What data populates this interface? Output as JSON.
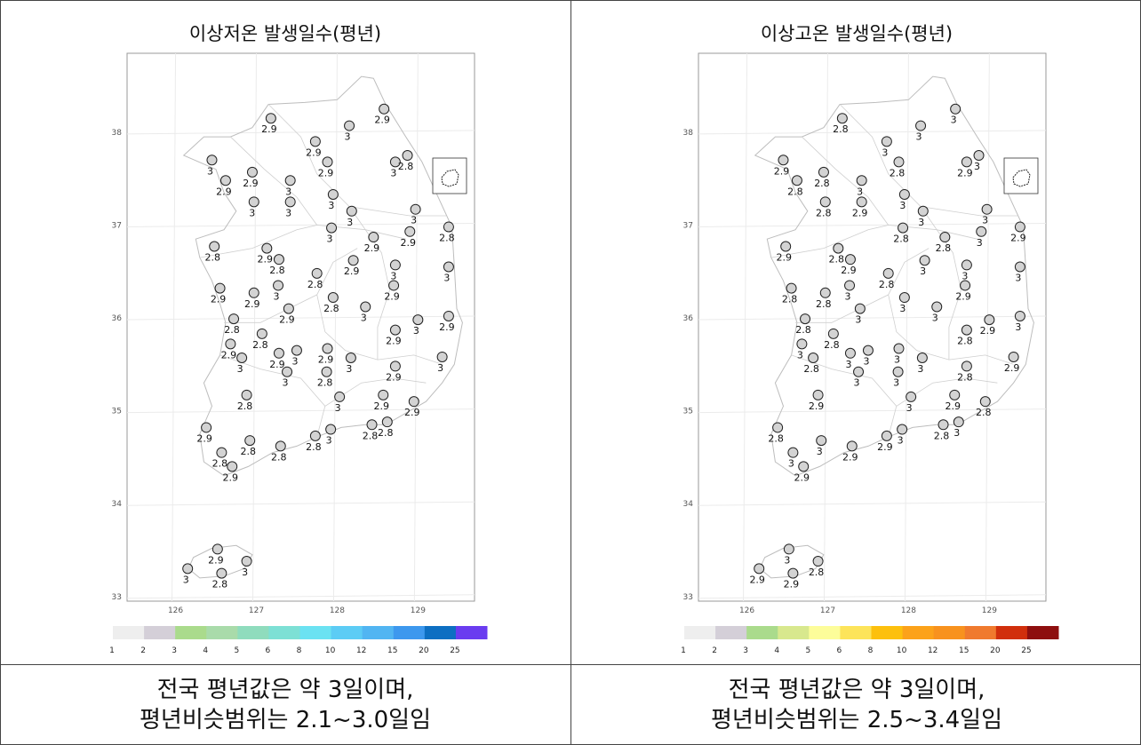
{
  "panels": [
    {
      "title": "이상저온 발생일수(평년)",
      "caption_line1": "전국 평년값은 약 3일이며,",
      "caption_line2": "평년비슷범위는 2.1~3.0일임",
      "legend": {
        "labels": [
          "1",
          "2",
          "3",
          "4",
          "5",
          "6",
          "8",
          "10",
          "12",
          "15",
          "20",
          "25"
        ],
        "colors": [
          "#eeeeee",
          "#d4cfd8",
          "#aadb8c",
          "#a9dbaa",
          "#8fdcbd",
          "#7de0d5",
          "#6be2f2",
          "#5cccf5",
          "#51b5f2",
          "#3d98ee",
          "#0d6fc2",
          "#6a3cf0"
        ]
      },
      "stations": [
        {
          "lon": 127.18,
          "lat": 38.15,
          "v": "2.9"
        },
        {
          "lon": 128.15,
          "lat": 38.07,
          "v": "3"
        },
        {
          "lon": 128.58,
          "lat": 38.25,
          "v": "2.9"
        },
        {
          "lon": 127.73,
          "lat": 37.9,
          "v": "2.9"
        },
        {
          "lon": 127.88,
          "lat": 37.68,
          "v": "2.9"
        },
        {
          "lon": 128.72,
          "lat": 37.68,
          "v": "3"
        },
        {
          "lon": 128.87,
          "lat": 37.75,
          "v": "2.8"
        },
        {
          "lon": 126.45,
          "lat": 37.7,
          "v": "3"
        },
        {
          "lon": 126.62,
          "lat": 37.48,
          "v": "2.9"
        },
        {
          "lon": 126.95,
          "lat": 37.57,
          "v": "2.9"
        },
        {
          "lon": 126.97,
          "lat": 37.25,
          "v": "3"
        },
        {
          "lon": 127.42,
          "lat": 37.48,
          "v": "3"
        },
        {
          "lon": 127.42,
          "lat": 37.25,
          "v": "3"
        },
        {
          "lon": 127.95,
          "lat": 37.33,
          "v": "3"
        },
        {
          "lon": 128.18,
          "lat": 37.15,
          "v": "3"
        },
        {
          "lon": 128.97,
          "lat": 37.17,
          "v": "3"
        },
        {
          "lon": 127.93,
          "lat": 36.97,
          "v": "3"
        },
        {
          "lon": 128.45,
          "lat": 36.87,
          "v": "2.9"
        },
        {
          "lon": 128.9,
          "lat": 36.93,
          "v": "2.9"
        },
        {
          "lon": 129.38,
          "lat": 36.98,
          "v": "2.8"
        },
        {
          "lon": 126.48,
          "lat": 36.77,
          "v": "2.8"
        },
        {
          "lon": 127.13,
          "lat": 36.75,
          "v": "2.9"
        },
        {
          "lon": 127.28,
          "lat": 36.63,
          "v": "2.8"
        },
        {
          "lon": 127.75,
          "lat": 36.48,
          "v": "2.8"
        },
        {
          "lon": 128.2,
          "lat": 36.62,
          "v": "2.9"
        },
        {
          "lon": 128.72,
          "lat": 36.57,
          "v": "3"
        },
        {
          "lon": 129.38,
          "lat": 36.55,
          "v": "3"
        },
        {
          "lon": 127.27,
          "lat": 36.35,
          "v": "3"
        },
        {
          "lon": 126.55,
          "lat": 36.32,
          "v": "2.9"
        },
        {
          "lon": 126.97,
          "lat": 36.27,
          "v": "2.9"
        },
        {
          "lon": 127.4,
          "lat": 36.1,
          "v": "2.9"
        },
        {
          "lon": 127.95,
          "lat": 36.22,
          "v": "2.8"
        },
        {
          "lon": 128.35,
          "lat": 36.12,
          "v": "3"
        },
        {
          "lon": 128.7,
          "lat": 36.35,
          "v": "2.9"
        },
        {
          "lon": 129.0,
          "lat": 35.98,
          "v": "3"
        },
        {
          "lon": 129.38,
          "lat": 36.02,
          "v": "2.9"
        },
        {
          "lon": 126.72,
          "lat": 35.99,
          "v": "2.8"
        },
        {
          "lon": 127.07,
          "lat": 35.83,
          "v": "2.8"
        },
        {
          "lon": 126.68,
          "lat": 35.72,
          "v": "2.9"
        },
        {
          "lon": 126.82,
          "lat": 35.57,
          "v": "3"
        },
        {
          "lon": 127.28,
          "lat": 35.62,
          "v": "2.9"
        },
        {
          "lon": 127.5,
          "lat": 35.65,
          "v": "3"
        },
        {
          "lon": 127.38,
          "lat": 35.42,
          "v": "3"
        },
        {
          "lon": 127.88,
          "lat": 35.67,
          "v": "2.9"
        },
        {
          "lon": 127.87,
          "lat": 35.42,
          "v": "2.8"
        },
        {
          "lon": 128.17,
          "lat": 35.57,
          "v": "3"
        },
        {
          "lon": 128.72,
          "lat": 35.87,
          "v": "2.9"
        },
        {
          "lon": 128.72,
          "lat": 35.48,
          "v": "2.9"
        },
        {
          "lon": 129.3,
          "lat": 35.58,
          "v": "3"
        },
        {
          "lon": 126.88,
          "lat": 35.17,
          "v": "2.8"
        },
        {
          "lon": 128.03,
          "lat": 35.15,
          "v": "3"
        },
        {
          "lon": 128.57,
          "lat": 35.17,
          "v": "2.9"
        },
        {
          "lon": 128.95,
          "lat": 35.1,
          "v": "2.9"
        },
        {
          "lon": 126.38,
          "lat": 34.82,
          "v": "2.9"
        },
        {
          "lon": 126.57,
          "lat": 34.55,
          "v": "2.8"
        },
        {
          "lon": 126.92,
          "lat": 34.68,
          "v": "2.8"
        },
        {
          "lon": 126.7,
          "lat": 34.4,
          "v": "2.9"
        },
        {
          "lon": 127.3,
          "lat": 34.62,
          "v": "2.8"
        },
        {
          "lon": 127.73,
          "lat": 34.73,
          "v": "2.8"
        },
        {
          "lon": 127.92,
          "lat": 34.8,
          "v": "3"
        },
        {
          "lon": 128.43,
          "lat": 34.85,
          "v": "2.8"
        },
        {
          "lon": 128.62,
          "lat": 34.88,
          "v": "2.8"
        },
        {
          "lon": 126.52,
          "lat": 33.51,
          "v": "2.9"
        },
        {
          "lon": 126.15,
          "lat": 33.3,
          "v": "3"
        },
        {
          "lon": 126.57,
          "lat": 33.25,
          "v": "2.8"
        },
        {
          "lon": 126.88,
          "lat": 33.38,
          "v": "3"
        }
      ]
    },
    {
      "title": "이상고온 발생일수(평년)",
      "caption_line1": "전국 평년값은 약 3일이며,",
      "caption_line2": "평년비슷범위는 2.5~3.4일임",
      "legend": {
        "labels": [
          "1",
          "2",
          "3",
          "4",
          "5",
          "6",
          "8",
          "10",
          "12",
          "15",
          "20",
          "25"
        ],
        "colors": [
          "#eeeeee",
          "#d4cfd8",
          "#aadb8c",
          "#d8e88e",
          "#fdfd9a",
          "#fde45a",
          "#fdc00d",
          "#fca21a",
          "#f8921e",
          "#f07a2e",
          "#d12f0c",
          "#8e0f0f"
        ]
      },
      "stations": [
        {
          "lon": 127.18,
          "lat": 38.15,
          "v": "2.8"
        },
        {
          "lon": 128.15,
          "lat": 38.07,
          "v": "3"
        },
        {
          "lon": 128.58,
          "lat": 38.25,
          "v": "3"
        },
        {
          "lon": 127.73,
          "lat": 37.9,
          "v": "3"
        },
        {
          "lon": 127.88,
          "lat": 37.68,
          "v": "2.8"
        },
        {
          "lon": 128.72,
          "lat": 37.68,
          "v": "2.9"
        },
        {
          "lon": 128.87,
          "lat": 37.75,
          "v": "3"
        },
        {
          "lon": 126.45,
          "lat": 37.7,
          "v": "2.9"
        },
        {
          "lon": 126.62,
          "lat": 37.48,
          "v": "2.8"
        },
        {
          "lon": 126.95,
          "lat": 37.57,
          "v": "2.8"
        },
        {
          "lon": 126.97,
          "lat": 37.25,
          "v": "2.8"
        },
        {
          "lon": 127.42,
          "lat": 37.48,
          "v": "3"
        },
        {
          "lon": 127.42,
          "lat": 37.25,
          "v": "2.9"
        },
        {
          "lon": 127.95,
          "lat": 37.33,
          "v": "3"
        },
        {
          "lon": 128.18,
          "lat": 37.15,
          "v": "3"
        },
        {
          "lon": 128.97,
          "lat": 37.17,
          "v": "3"
        },
        {
          "lon": 127.93,
          "lat": 36.97,
          "v": "2.8"
        },
        {
          "lon": 128.45,
          "lat": 36.87,
          "v": "2.8"
        },
        {
          "lon": 128.9,
          "lat": 36.93,
          "v": "3"
        },
        {
          "lon": 129.38,
          "lat": 36.98,
          "v": "2.9"
        },
        {
          "lon": 126.48,
          "lat": 36.77,
          "v": "2.9"
        },
        {
          "lon": 127.13,
          "lat": 36.75,
          "v": "2.8"
        },
        {
          "lon": 127.28,
          "lat": 36.63,
          "v": "2.9"
        },
        {
          "lon": 127.75,
          "lat": 36.48,
          "v": "2.8"
        },
        {
          "lon": 128.2,
          "lat": 36.62,
          "v": "3"
        },
        {
          "lon": 128.72,
          "lat": 36.57,
          "v": "3"
        },
        {
          "lon": 129.38,
          "lat": 36.55,
          "v": "3"
        },
        {
          "lon": 127.27,
          "lat": 36.35,
          "v": "3"
        },
        {
          "lon": 126.55,
          "lat": 36.32,
          "v": "2.8"
        },
        {
          "lon": 126.97,
          "lat": 36.27,
          "v": "2.8"
        },
        {
          "lon": 127.4,
          "lat": 36.1,
          "v": "3"
        },
        {
          "lon": 127.95,
          "lat": 36.22,
          "v": "3"
        },
        {
          "lon": 128.35,
          "lat": 36.12,
          "v": "3"
        },
        {
          "lon": 128.7,
          "lat": 36.35,
          "v": "2.9"
        },
        {
          "lon": 129.0,
          "lat": 35.98,
          "v": "2.9"
        },
        {
          "lon": 129.38,
          "lat": 36.02,
          "v": "3"
        },
        {
          "lon": 126.72,
          "lat": 35.99,
          "v": "2.8"
        },
        {
          "lon": 127.07,
          "lat": 35.83,
          "v": "2.8"
        },
        {
          "lon": 126.68,
          "lat": 35.72,
          "v": "3"
        },
        {
          "lon": 126.82,
          "lat": 35.57,
          "v": "2.8"
        },
        {
          "lon": 127.28,
          "lat": 35.62,
          "v": "3"
        },
        {
          "lon": 127.5,
          "lat": 35.65,
          "v": "3"
        },
        {
          "lon": 127.38,
          "lat": 35.42,
          "v": "3"
        },
        {
          "lon": 127.88,
          "lat": 35.67,
          "v": "3"
        },
        {
          "lon": 127.87,
          "lat": 35.42,
          "v": "3"
        },
        {
          "lon": 128.17,
          "lat": 35.57,
          "v": "3"
        },
        {
          "lon": 128.72,
          "lat": 35.87,
          "v": "2.8"
        },
        {
          "lon": 128.72,
          "lat": 35.48,
          "v": "2.8"
        },
        {
          "lon": 129.3,
          "lat": 35.58,
          "v": "2.9"
        },
        {
          "lon": 126.88,
          "lat": 35.17,
          "v": "2.9"
        },
        {
          "lon": 128.03,
          "lat": 35.15,
          "v": "3"
        },
        {
          "lon": 128.57,
          "lat": 35.17,
          "v": "2.9"
        },
        {
          "lon": 128.95,
          "lat": 35.1,
          "v": "2.8"
        },
        {
          "lon": 126.38,
          "lat": 34.82,
          "v": "2.8"
        },
        {
          "lon": 126.57,
          "lat": 34.55,
          "v": "3"
        },
        {
          "lon": 126.92,
          "lat": 34.68,
          "v": "3"
        },
        {
          "lon": 126.7,
          "lat": 34.4,
          "v": "2.9"
        },
        {
          "lon": 127.3,
          "lat": 34.62,
          "v": "2.9"
        },
        {
          "lon": 127.73,
          "lat": 34.73,
          "v": "2.9"
        },
        {
          "lon": 127.92,
          "lat": 34.8,
          "v": "3"
        },
        {
          "lon": 128.43,
          "lat": 34.85,
          "v": "2.8"
        },
        {
          "lon": 128.62,
          "lat": 34.88,
          "v": "3"
        },
        {
          "lon": 126.52,
          "lat": 33.51,
          "v": "3"
        },
        {
          "lon": 126.15,
          "lat": 33.3,
          "v": "2.9"
        },
        {
          "lon": 126.57,
          "lat": 33.25,
          "v": "2.9"
        },
        {
          "lon": 126.88,
          "lat": 33.38,
          "v": "2.8"
        }
      ]
    }
  ],
  "axes": {
    "lon_ticks": [
      "126",
      "127",
      "128",
      "129"
    ],
    "lat_ticks": [
      "33",
      "34",
      "35",
      "36",
      "37",
      "38"
    ],
    "lon_range": [
      125.4,
      129.7
    ],
    "lat_range": [
      32.95,
      38.85
    ]
  }
}
